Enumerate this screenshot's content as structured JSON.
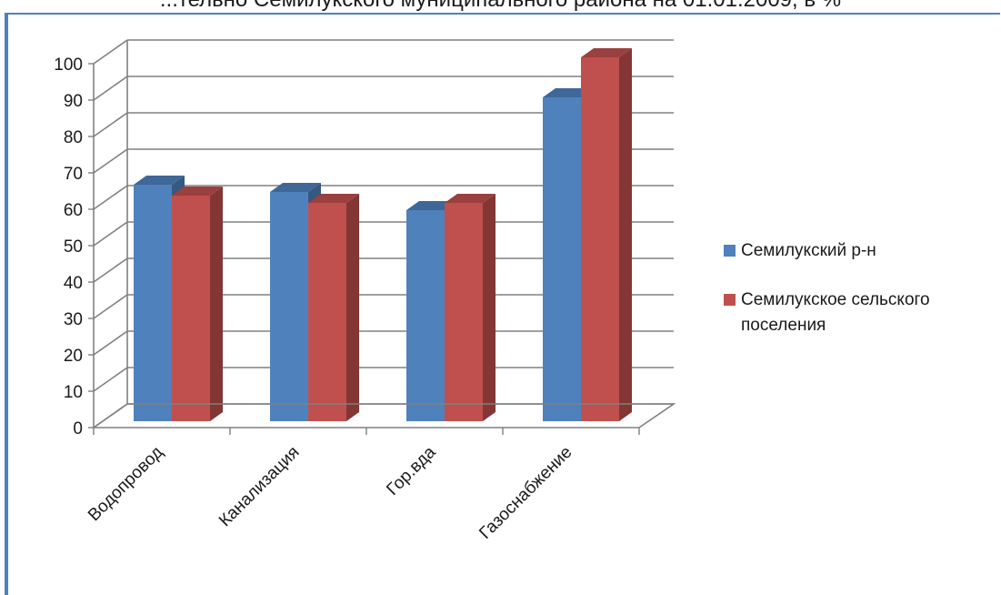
{
  "page": {
    "title_fragment": "...тельно Семилукского муниципального района на 01.01.2009, в %"
  },
  "chart_data": {
    "type": "bar",
    "categories": [
      "Водопровод",
      "Канализация",
      "Гор.вда",
      "Газоснабжение"
    ],
    "series": [
      {
        "name": "Семилукский р-н",
        "values": [
          65,
          63,
          58,
          89
        ],
        "color": "#4f81bd"
      },
      {
        "name": "Семилукское сельского поселения",
        "values": [
          62,
          60,
          60,
          100
        ],
        "color": "#c0504d"
      }
    ],
    "ylim": [
      0,
      100
    ],
    "yticks": [
      "0",
      "10",
      "20",
      "30",
      "40",
      "50",
      "60",
      "70",
      "80",
      "90",
      "100"
    ],
    "grid": true,
    "legend_position": "right",
    "three_d": true
  }
}
